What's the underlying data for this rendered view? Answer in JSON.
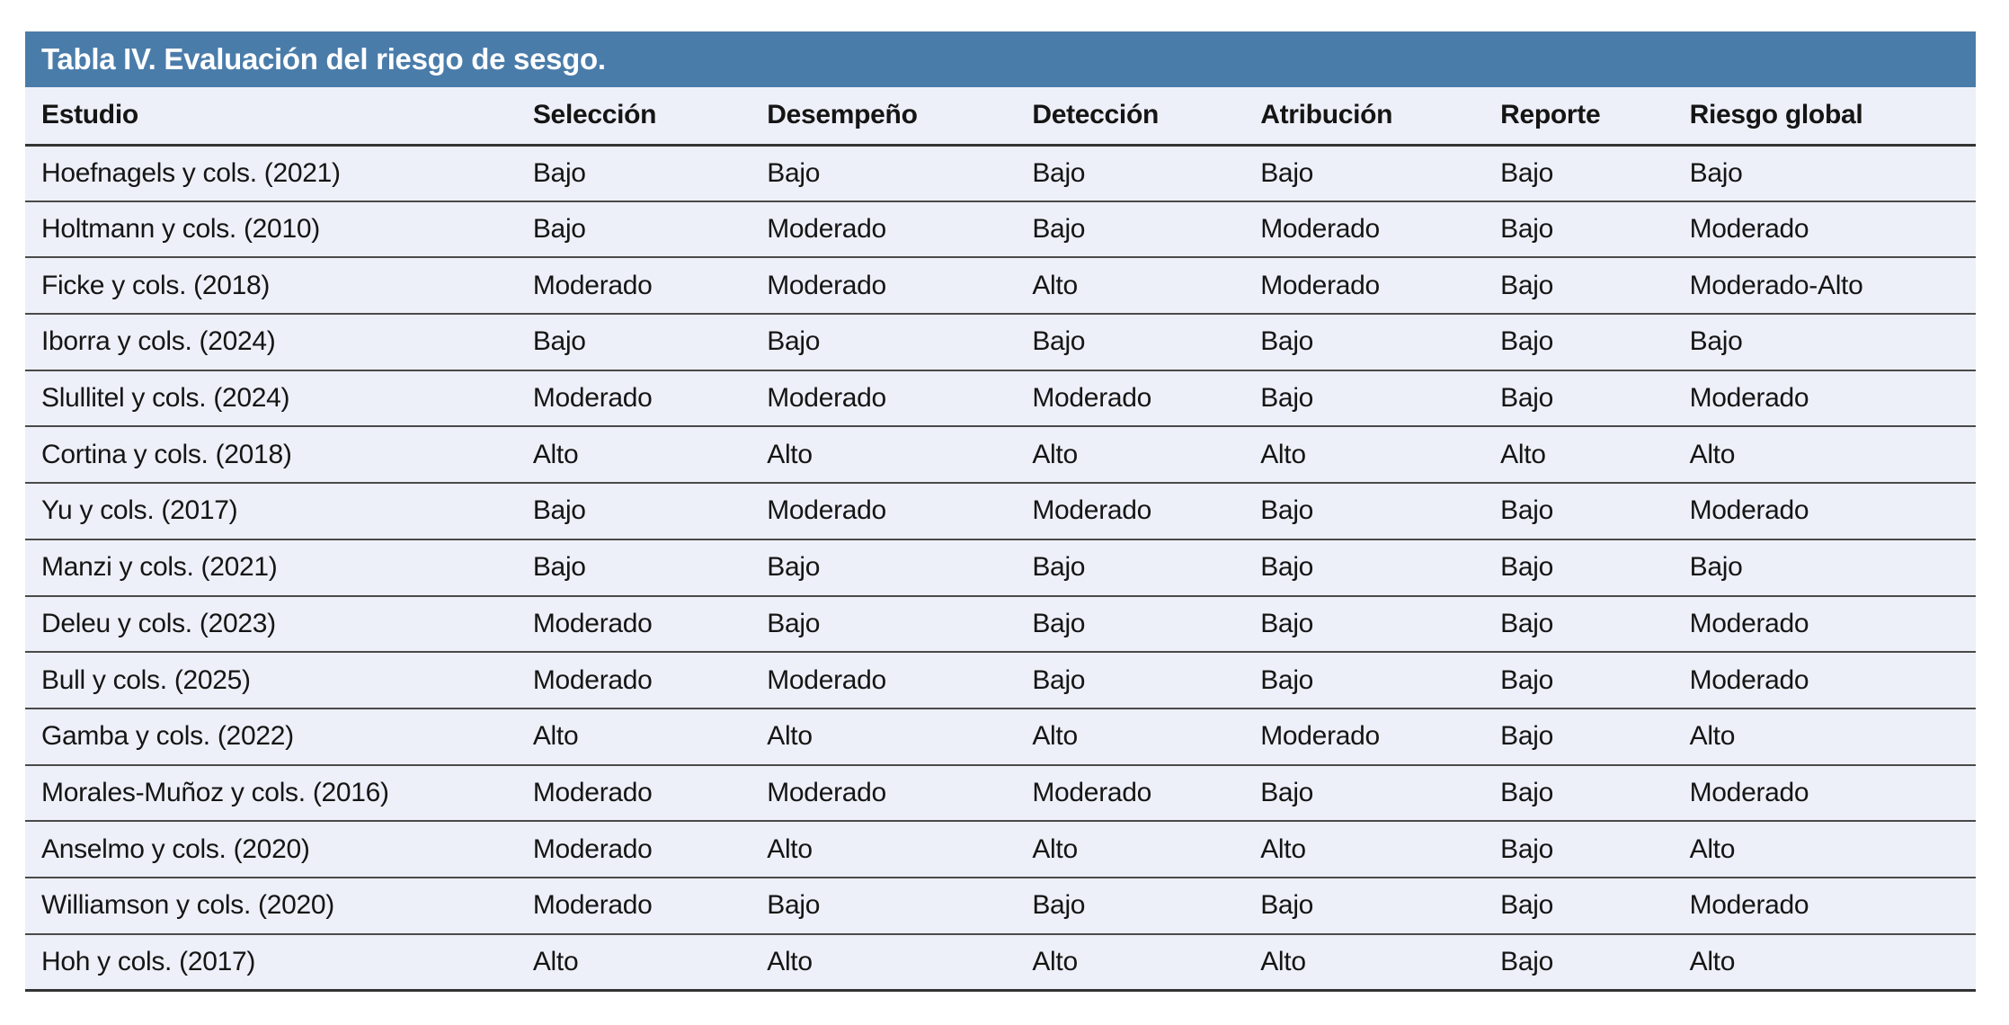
{
  "title": "Tabla IV. Evaluación del riesgo de sesgo.",
  "colors": {
    "title_bar_bg": "#4a7caa",
    "title_text": "#ffffff",
    "row_bg": "#edf0f8",
    "rule_line": "#4a4a4a",
    "strong_rule_line": "#333333",
    "body_text": "#151515"
  },
  "chart_data": {
    "type": "table",
    "title": "Tabla IV. Evaluación del riesgo de sesgo.",
    "columns": [
      "Estudio",
      "Selección",
      "Desempeño",
      "Detección",
      "Atribución",
      "Reporte",
      "Riesgo global"
    ],
    "rows": [
      [
        "Hoefnagels y cols. (2021)",
        "Bajo",
        "Bajo",
        "Bajo",
        "Bajo",
        "Bajo",
        "Bajo"
      ],
      [
        "Holtmann y cols. (2010)",
        "Bajo",
        "Moderado",
        "Bajo",
        "Moderado",
        "Bajo",
        "Moderado"
      ],
      [
        "Ficke y cols. (2018)",
        "Moderado",
        "Moderado",
        "Alto",
        "Moderado",
        "Bajo",
        "Moderado-Alto"
      ],
      [
        "Iborra y cols. (2024)",
        "Bajo",
        "Bajo",
        "Bajo",
        "Bajo",
        "Bajo",
        "Bajo"
      ],
      [
        "Slullitel y cols. (2024)",
        "Moderado",
        "Moderado",
        "Moderado",
        "Bajo",
        "Bajo",
        "Moderado"
      ],
      [
        "Cortina y cols. (2018)",
        "Alto",
        "Alto",
        "Alto",
        "Alto",
        "Alto",
        "Alto"
      ],
      [
        "Yu y cols. (2017)",
        "Bajo",
        "Moderado",
        "Moderado",
        "Bajo",
        "Bajo",
        "Moderado"
      ],
      [
        "Manzi y cols. (2021)",
        "Bajo",
        "Bajo",
        "Bajo",
        "Bajo",
        "Bajo",
        "Bajo"
      ],
      [
        "Deleu y cols. (2023)",
        "Moderado",
        "Bajo",
        "Bajo",
        "Bajo",
        "Bajo",
        "Moderado"
      ],
      [
        "Bull y cols. (2025)",
        "Moderado",
        "Moderado",
        "Bajo",
        "Bajo",
        "Bajo",
        "Moderado"
      ],
      [
        "Gamba y cols. (2022)",
        "Alto",
        "Alto",
        "Alto",
        "Moderado",
        "Bajo",
        "Alto"
      ],
      [
        "Morales-Muñoz y cols. (2016)",
        "Moderado",
        "Moderado",
        "Moderado",
        "Bajo",
        "Bajo",
        "Moderado"
      ],
      [
        "Anselmo y cols. (2020)",
        "Moderado",
        "Alto",
        "Alto",
        "Alto",
        "Bajo",
        "Alto"
      ],
      [
        "Williamson y cols. (2020)",
        "Moderado",
        "Bajo",
        "Bajo",
        "Bajo",
        "Bajo",
        "Moderado"
      ],
      [
        "Hoh y cols. (2017)",
        "Alto",
        "Alto",
        "Alto",
        "Alto",
        "Bajo",
        "Alto"
      ]
    ]
  }
}
